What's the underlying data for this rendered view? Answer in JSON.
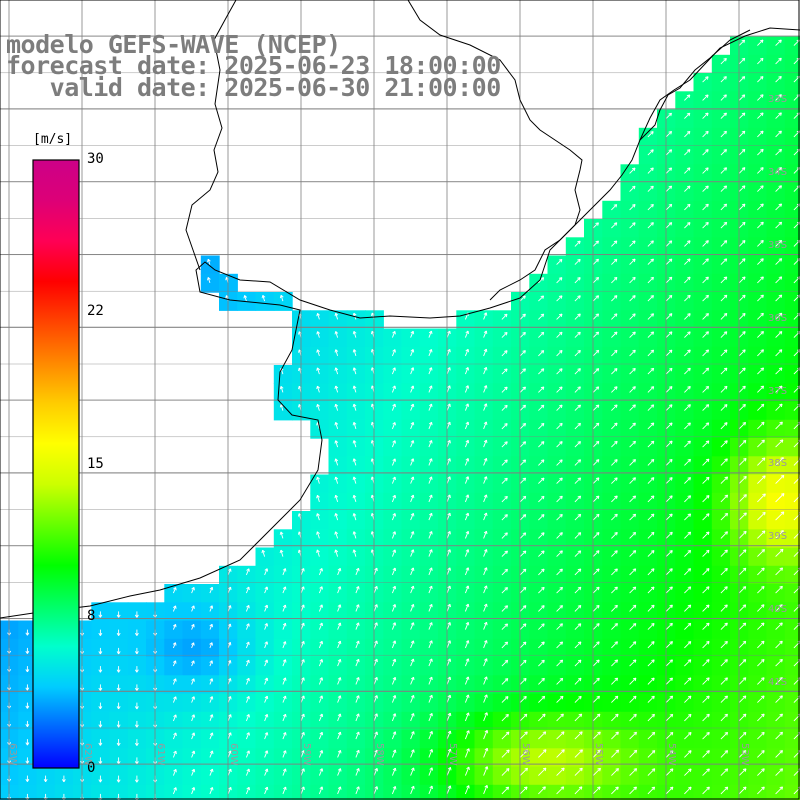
{
  "title": {
    "line1": "modelo GEFS-WAVE (NCEP)",
    "line2": "forecast date: 2025-06-23 18:00:00",
    "line3": "   valid date: 2025-06-30 21:00:00"
  },
  "colorbar": {
    "unit": "[m/s]",
    "ticks": [
      "30",
      "22",
      "15",
      "8",
      "0"
    ],
    "tick_values": [
      30,
      22,
      15,
      8,
      0
    ],
    "range": [
      0,
      30
    ],
    "colors": [
      "#0000ff",
      "#0066ff",
      "#00ccff",
      "#00ffcc",
      "#00ff66",
      "#00ff00",
      "#66ff00",
      "#ccff00",
      "#ffff00",
      "#ffcc00",
      "#ff8800",
      "#ff4400",
      "#ff0000",
      "#ff0055",
      "#dd0077",
      "#cc0088"
    ]
  },
  "axes": {
    "lat_labels": [
      "33S",
      "34S",
      "35S",
      "36S",
      "37S",
      "38S",
      "39S",
      "40S",
      "41S"
    ],
    "lon_labels": [
      "63W",
      "62W",
      "61W",
      "60W",
      "59W",
      "58W",
      "57W",
      "56W",
      "55W",
      "54W",
      "53W",
      "52W"
    ],
    "grid": true
  },
  "colors": {
    "land": "#ffffff",
    "title_text": "#7d7d7d",
    "grid_line": "#808080",
    "coast_line": "#000000",
    "arrow": "#ffffff"
  }
}
